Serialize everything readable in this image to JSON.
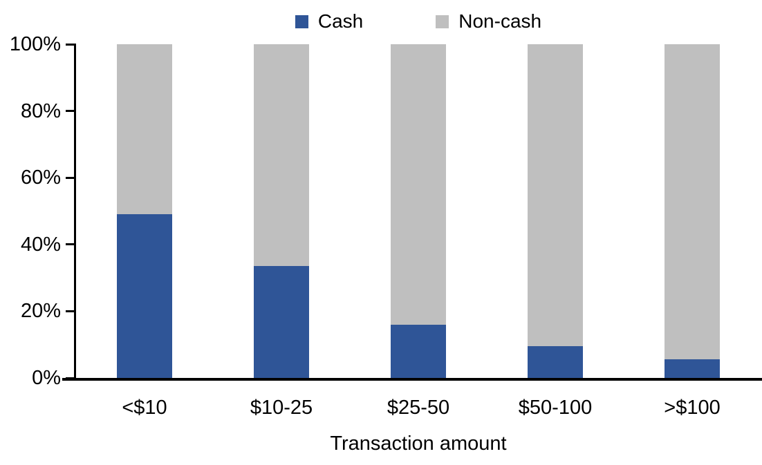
{
  "chart_data": {
    "type": "bar",
    "stacked": true,
    "percent_stacked": true,
    "title": "",
    "xlabel": "Transaction amount",
    "ylabel": "",
    "categories": [
      "<$10",
      "$10-25",
      "$25-50",
      "$50-100",
      ">$100"
    ],
    "series": [
      {
        "name": "Cash",
        "color": "#2F5597",
        "values": [
          49,
          33.5,
          16,
          9.5,
          5.5
        ]
      },
      {
        "name": "Non-cash",
        "color": "#BFBFBF",
        "values": [
          51,
          66.5,
          84,
          90.5,
          94.5
        ]
      }
    ],
    "ylim": [
      0,
      100
    ],
    "yticks": [
      0,
      20,
      40,
      60,
      80,
      100
    ],
    "ytick_suffix": "%",
    "legend_position": "top",
    "grid": false,
    "axis_color": "#000000",
    "background_color": "#FFFFFF"
  }
}
